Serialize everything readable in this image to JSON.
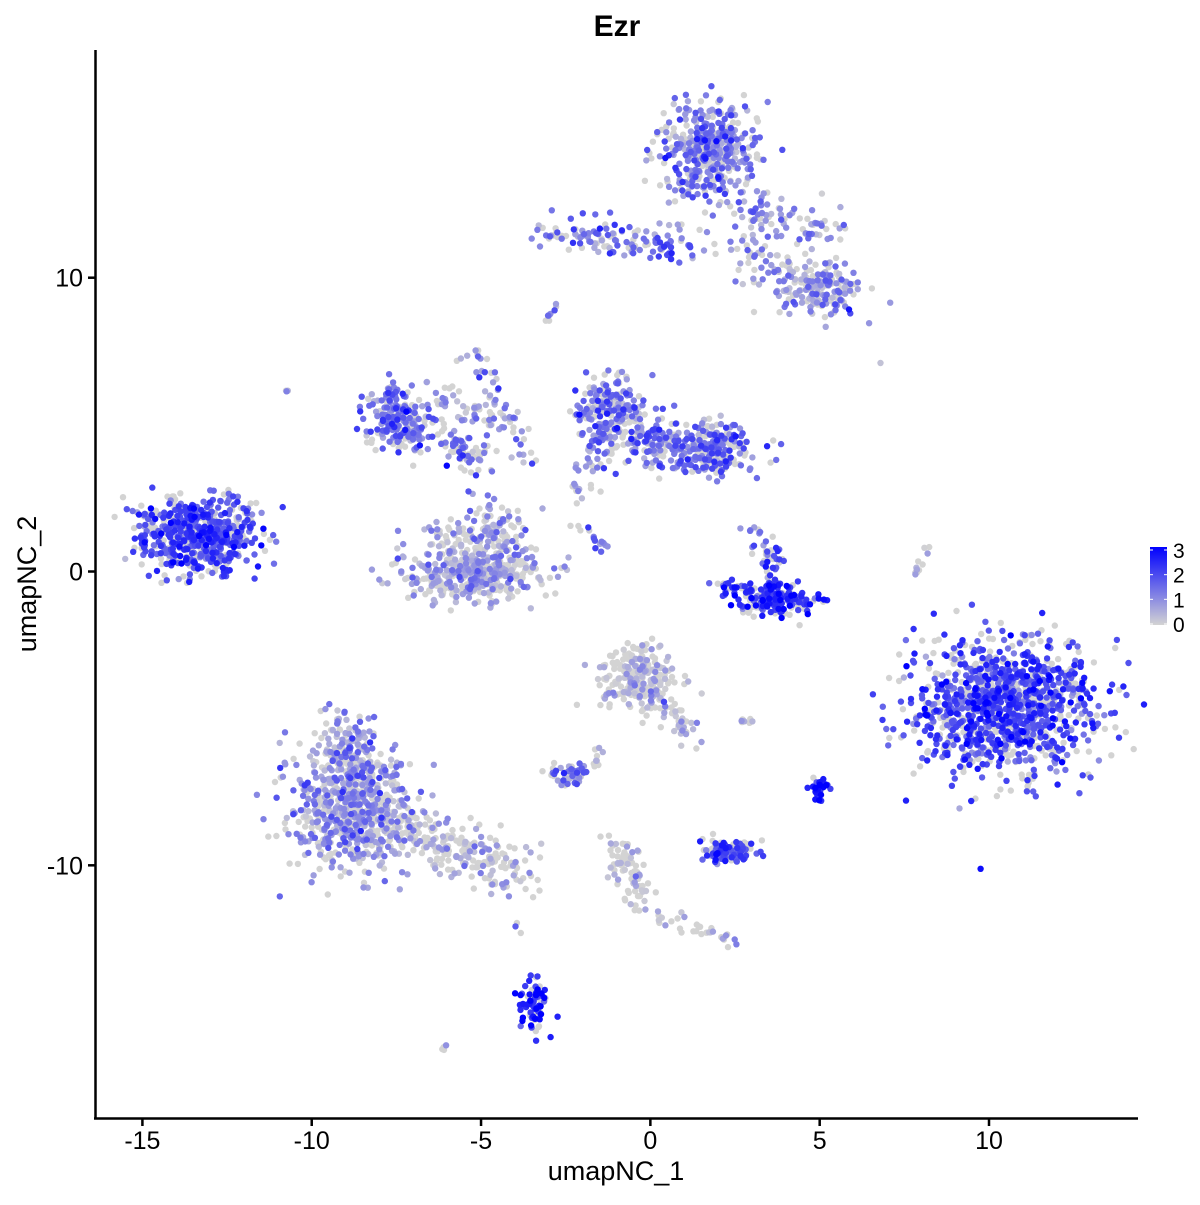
{
  "chart_data": {
    "type": "scatter",
    "title": "Ezr",
    "xlabel": "umapNC_1",
    "ylabel": "umapNC_2",
    "xlim": [
      -16.4,
      14.4
    ],
    "ylim": [
      -18.6,
      17.75
    ],
    "xticks": [
      -15,
      -10,
      -5,
      0,
      5,
      10
    ],
    "yticks": [
      -10,
      0,
      10
    ],
    "xtick_labels": [
      "-15",
      "-10",
      "-5",
      "0",
      "5",
      "10"
    ],
    "ytick_labels": [
      "-10",
      "0",
      "10"
    ],
    "grid": false,
    "legend": {
      "position": "right",
      "min": 0,
      "max": 3,
      "ticks": [
        "0",
        "1",
        "2",
        "3"
      ],
      "low_color": "#d3d3d3",
      "high_color": "#0000ff"
    },
    "point_note": "approximate clusters of cells (UMAP coords), each colored by Ezr expression",
    "clusters": [
      {
        "kind": "blob",
        "cx": -13.4,
        "cy": 1.2,
        "sx": 0.85,
        "sy": 0.65,
        "n": 550,
        "expr": 1.9
      },
      {
        "kind": "seg",
        "x1": -11.8,
        "y1": 2.7,
        "x2": -12.8,
        "y2": 0.2,
        "w": 0.25,
        "n": 40,
        "expr": 1.6
      },
      {
        "kind": "blob",
        "cx": 1.7,
        "cy": 14.3,
        "sx": 0.7,
        "sy": 0.85,
        "n": 420,
        "expr": 1.2
      },
      {
        "kind": "seg",
        "x1": -3.3,
        "y1": 11.6,
        "x2": 1.3,
        "y2": 11.0,
        "w": 0.3,
        "n": 130,
        "expr": 1.4
      },
      {
        "kind": "seg",
        "x1": 2.0,
        "y1": 12.5,
        "x2": 5.5,
        "y2": 11.6,
        "w": 0.4,
        "n": 90,
        "expr": 1.0
      },
      {
        "kind": "seg",
        "x1": 2.5,
        "y1": 11.0,
        "x2": 4.5,
        "y2": 9.6,
        "w": 0.35,
        "n": 60,
        "expr": 0.6
      },
      {
        "kind": "blob",
        "cx": 5.1,
        "cy": 9.6,
        "sx": 0.6,
        "sy": 0.45,
        "n": 170,
        "expr": 0.9
      },
      {
        "kind": "blob",
        "cx": -7.5,
        "cy": 5.3,
        "sx": 0.45,
        "sy": 0.55,
        "n": 180,
        "expr": 1.4
      },
      {
        "kind": "seg",
        "x1": -7.3,
        "y1": 5.0,
        "x2": -4.8,
        "y2": 3.8,
        "w": 0.35,
        "n": 110,
        "expr": 1.1
      },
      {
        "kind": "seg",
        "x1": -6.5,
        "y1": 6.0,
        "x2": -3.8,
        "y2": 5.2,
        "w": 0.3,
        "n": 60,
        "expr": 0.9
      },
      {
        "kind": "seg",
        "x1": -5.3,
        "y1": 7.5,
        "x2": -3.6,
        "y2": 3.8,
        "w": 0.2,
        "n": 40,
        "expr": 1.0
      },
      {
        "kind": "seg",
        "x1": -4.7,
        "y1": 2.3,
        "x2": -4.6,
        "y2": 0.0,
        "w": 0.35,
        "n": 70,
        "expr": 0.9
      },
      {
        "kind": "blob",
        "cx": -5.2,
        "cy": -0.1,
        "sx": 1.0,
        "sy": 0.45,
        "n": 380,
        "expr": 0.6
      },
      {
        "kind": "seg",
        "x1": -6.6,
        "y1": 1.0,
        "x2": -3.8,
        "y2": 1.4,
        "w": 0.35,
        "n": 90,
        "expr": 0.7
      },
      {
        "kind": "blob",
        "cx": -1.2,
        "cy": 5.5,
        "sx": 0.5,
        "sy": 0.6,
        "n": 180,
        "expr": 1.3
      },
      {
        "kind": "seg",
        "x1": -1.2,
        "y1": 4.6,
        "x2": 2.5,
        "y2": 4.0,
        "w": 0.45,
        "n": 230,
        "expr": 1.3
      },
      {
        "kind": "blob",
        "cx": 1.9,
        "cy": 4.2,
        "sx": 0.55,
        "sy": 0.4,
        "n": 140,
        "expr": 1.5
      },
      {
        "kind": "seg",
        "x1": -2.2,
        "y1": 2.5,
        "x2": -1.2,
        "y2": 4.8,
        "w": 0.25,
        "n": 40,
        "expr": 0.9
      },
      {
        "kind": "seg",
        "x1": -2.2,
        "y1": 1.5,
        "x2": -1.2,
        "y2": 0.7,
        "w": 0.12,
        "n": 15,
        "expr": 1.0
      },
      {
        "kind": "seg",
        "x1": -2.8,
        "y1": 9.1,
        "x2": -3.1,
        "y2": 8.5,
        "w": 0.1,
        "n": 8,
        "expr": 1.3
      },
      {
        "kind": "blob",
        "cx": 3.8,
        "cy": -0.9,
        "sx": 0.55,
        "sy": 0.3,
        "n": 160,
        "expr": 2.3
      },
      {
        "kind": "seg",
        "x1": 2.0,
        "y1": -0.3,
        "x2": 3.4,
        "y2": -1.0,
        "w": 0.2,
        "n": 40,
        "expr": 2.0
      },
      {
        "kind": "seg",
        "x1": 3.1,
        "y1": 1.3,
        "x2": 3.7,
        "y2": 0.0,
        "w": 0.2,
        "n": 40,
        "expr": 1.8
      },
      {
        "kind": "seg",
        "x1": 7.8,
        "y1": -0.2,
        "x2": 8.3,
        "y2": 1.0,
        "w": 0.08,
        "n": 12,
        "expr": 0.4
      },
      {
        "kind": "blob",
        "cx": 10.5,
        "cy": -4.6,
        "sx": 1.3,
        "sy": 1.15,
        "n": 1200,
        "expr": 1.9
      },
      {
        "kind": "blob",
        "cx": -0.3,
        "cy": -3.6,
        "sx": 0.55,
        "sy": 0.55,
        "n": 240,
        "expr": 0.2
      },
      {
        "kind": "seg",
        "x1": 0.0,
        "y1": -4.0,
        "x2": 1.2,
        "y2": -5.6,
        "w": 0.25,
        "n": 40,
        "expr": 0.3
      },
      {
        "kind": "blob",
        "cx": -8.9,
        "cy": -8.0,
        "sx": 0.9,
        "sy": 1.1,
        "n": 600,
        "expr": 0.9
      },
      {
        "kind": "seg",
        "x1": -9.2,
        "y1": -5.2,
        "x2": -8.5,
        "y2": -7.0,
        "w": 0.4,
        "n": 120,
        "expr": 0.9
      },
      {
        "kind": "seg",
        "x1": -8.0,
        "y1": -8.4,
        "x2": -4.0,
        "y2": -10.3,
        "w": 0.45,
        "n": 260,
        "expr": 0.3
      },
      {
        "kind": "blob",
        "cx": -2.4,
        "cy": -6.9,
        "sx": 0.3,
        "sy": 0.2,
        "n": 45,
        "expr": 1.5
      },
      {
        "kind": "seg",
        "x1": -1.7,
        "y1": -6.6,
        "x2": -1.5,
        "y2": -5.8,
        "w": 0.1,
        "n": 8,
        "expr": 0.4
      },
      {
        "kind": "blob",
        "cx": 2.3,
        "cy": -9.5,
        "sx": 0.4,
        "sy": 0.2,
        "n": 110,
        "expr": 1.9
      },
      {
        "kind": "blob",
        "cx": 5.0,
        "cy": -7.4,
        "sx": 0.15,
        "sy": 0.25,
        "n": 30,
        "expr": 2.5
      },
      {
        "kind": "seg",
        "x1": -0.9,
        "y1": -9.3,
        "x2": -0.3,
        "y2": -11.3,
        "w": 0.25,
        "n": 80,
        "expr": 0.2
      },
      {
        "kind": "seg",
        "x1": 0.3,
        "y1": -11.8,
        "x2": 2.5,
        "y2": -12.6,
        "w": 0.15,
        "n": 30,
        "expr": 0.2
      },
      {
        "kind": "blob",
        "cx": -3.4,
        "cy": -14.7,
        "sx": 0.2,
        "sy": 0.45,
        "n": 80,
        "expr": 2.6
      },
      {
        "kind": "seg",
        "x1": -4.0,
        "y1": -11.9,
        "x2": -3.9,
        "y2": -12.5,
        "w": 0.05,
        "n": 3,
        "expr": 2.0
      },
      {
        "kind": "seg",
        "x1": -6.1,
        "y1": -16.3,
        "x2": -6.0,
        "y2": -16.1,
        "w": 0.05,
        "n": 4,
        "expr": 1.2
      },
      {
        "kind": "seg",
        "x1": 2.7,
        "y1": -5.1,
        "x2": 3.0,
        "y2": -5.1,
        "w": 0.05,
        "n": 8,
        "expr": 0.2
      },
      {
        "kind": "seg",
        "x1": -10.8,
        "y1": 6.1,
        "x2": -10.6,
        "y2": 6.0,
        "w": 0.05,
        "n": 3,
        "expr": 0.1
      },
      {
        "kind": "seg",
        "x1": 6.8,
        "y1": 7.1,
        "x2": 6.8,
        "y2": 7.1,
        "w": 0.02,
        "n": 1,
        "expr": 0.1
      }
    ]
  }
}
